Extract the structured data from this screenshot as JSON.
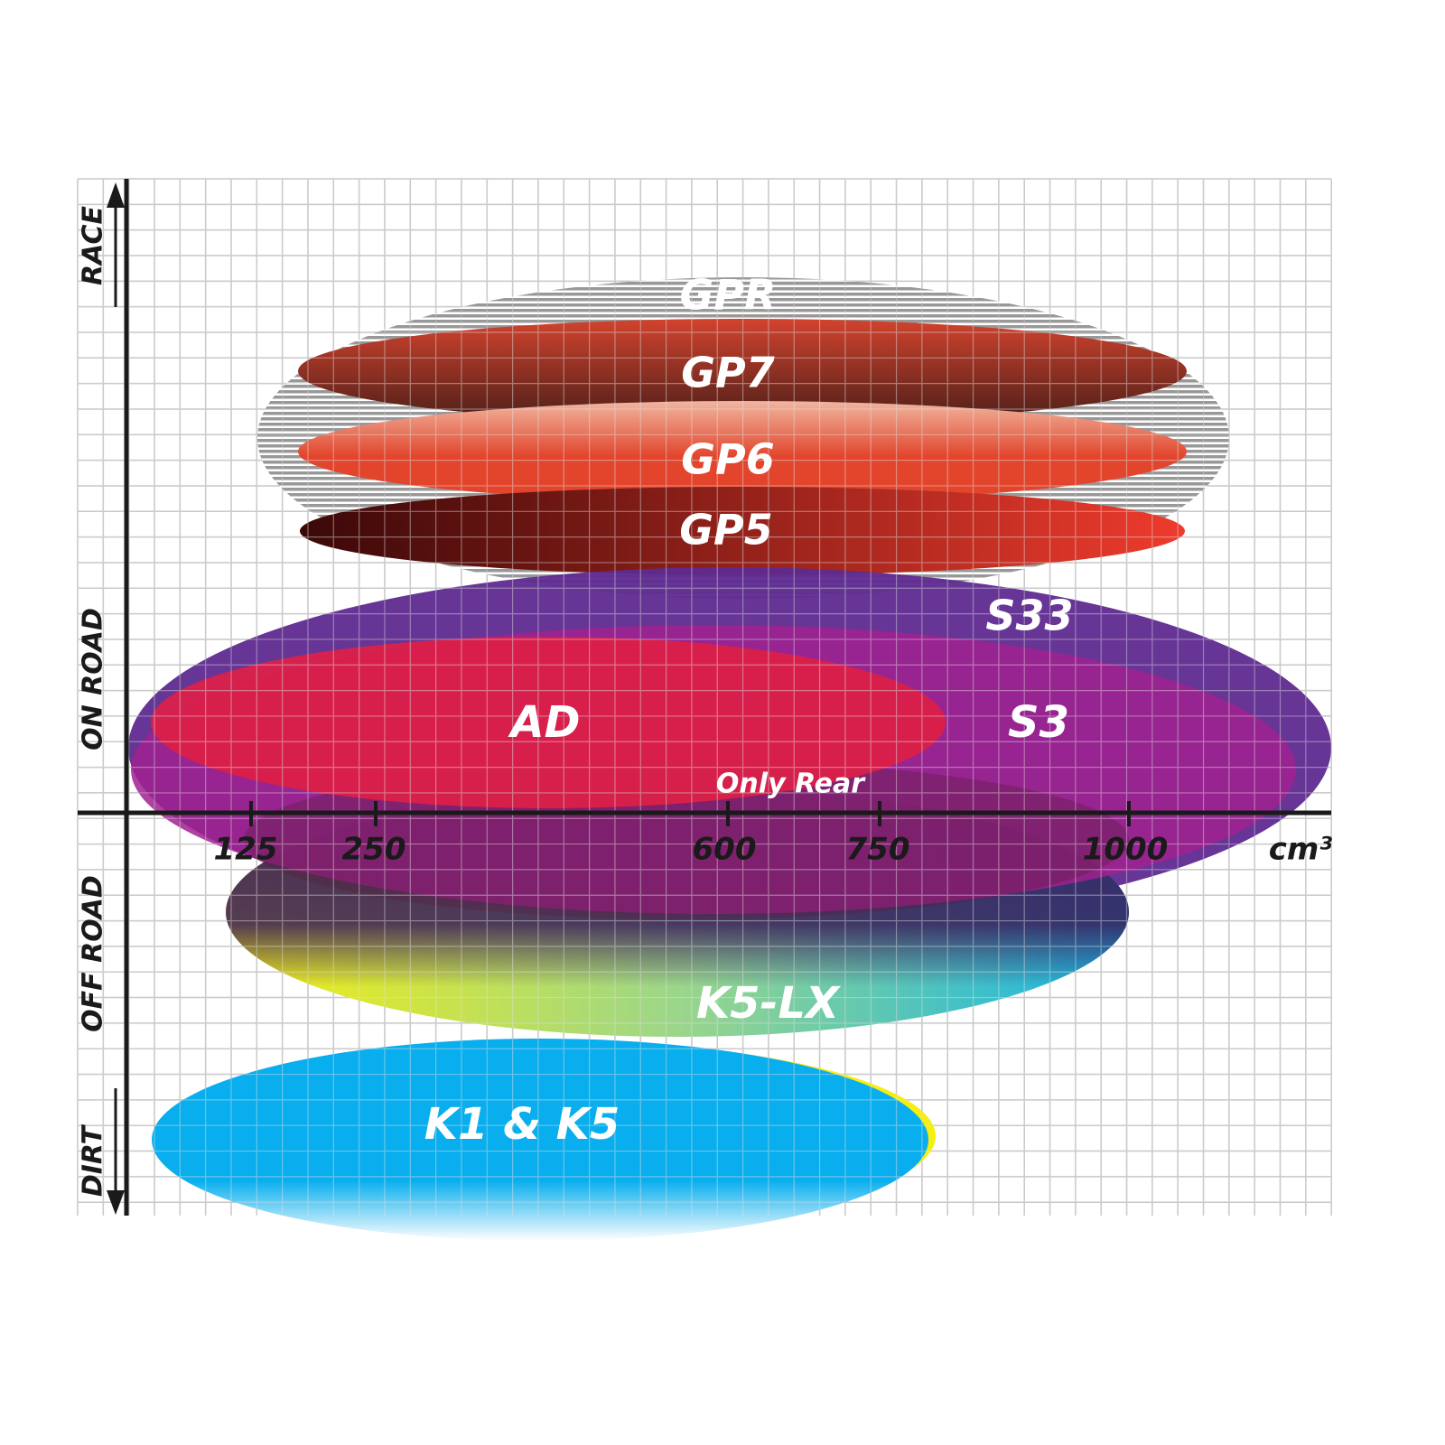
{
  "y_axis_labels": {
    "race": "RACE",
    "on_road": "ON ROAD",
    "off_road": "OFF ROAD",
    "dirt": "DIRT"
  },
  "x_axis": {
    "ticks": [
      "125",
      "250",
      "600",
      "750",
      "1000"
    ],
    "unit": "cm³"
  },
  "products": {
    "gpr": "GPR",
    "gp7": "GP7",
    "gp6": "GP6",
    "gp5": "GP5",
    "s33": "S33",
    "ad": "AD",
    "s3": "S3",
    "only_rear": "Only Rear",
    "k5lx": "K5-LX",
    "k1k5": "K1 & K5"
  },
  "colors": {
    "gpr": "#9a9a9a",
    "gp7_top": "#d2432e",
    "gp7_bottom": "#4a1e18",
    "gp6_top": "#f0b6a0",
    "gp6_bottom": "#e2452c",
    "gp5_left": "#3a0808",
    "gp5_right": "#ee3b2c",
    "s33": "#5e2a90",
    "s3": "#a0218f",
    "ad": "#dd1f46",
    "k5lx_left": "#f5ee10",
    "k5lx_right": "#12b4e8",
    "k1k5": "#08aeee",
    "grid": "#bdbdbd",
    "axis": "#1a1a1a"
  }
}
